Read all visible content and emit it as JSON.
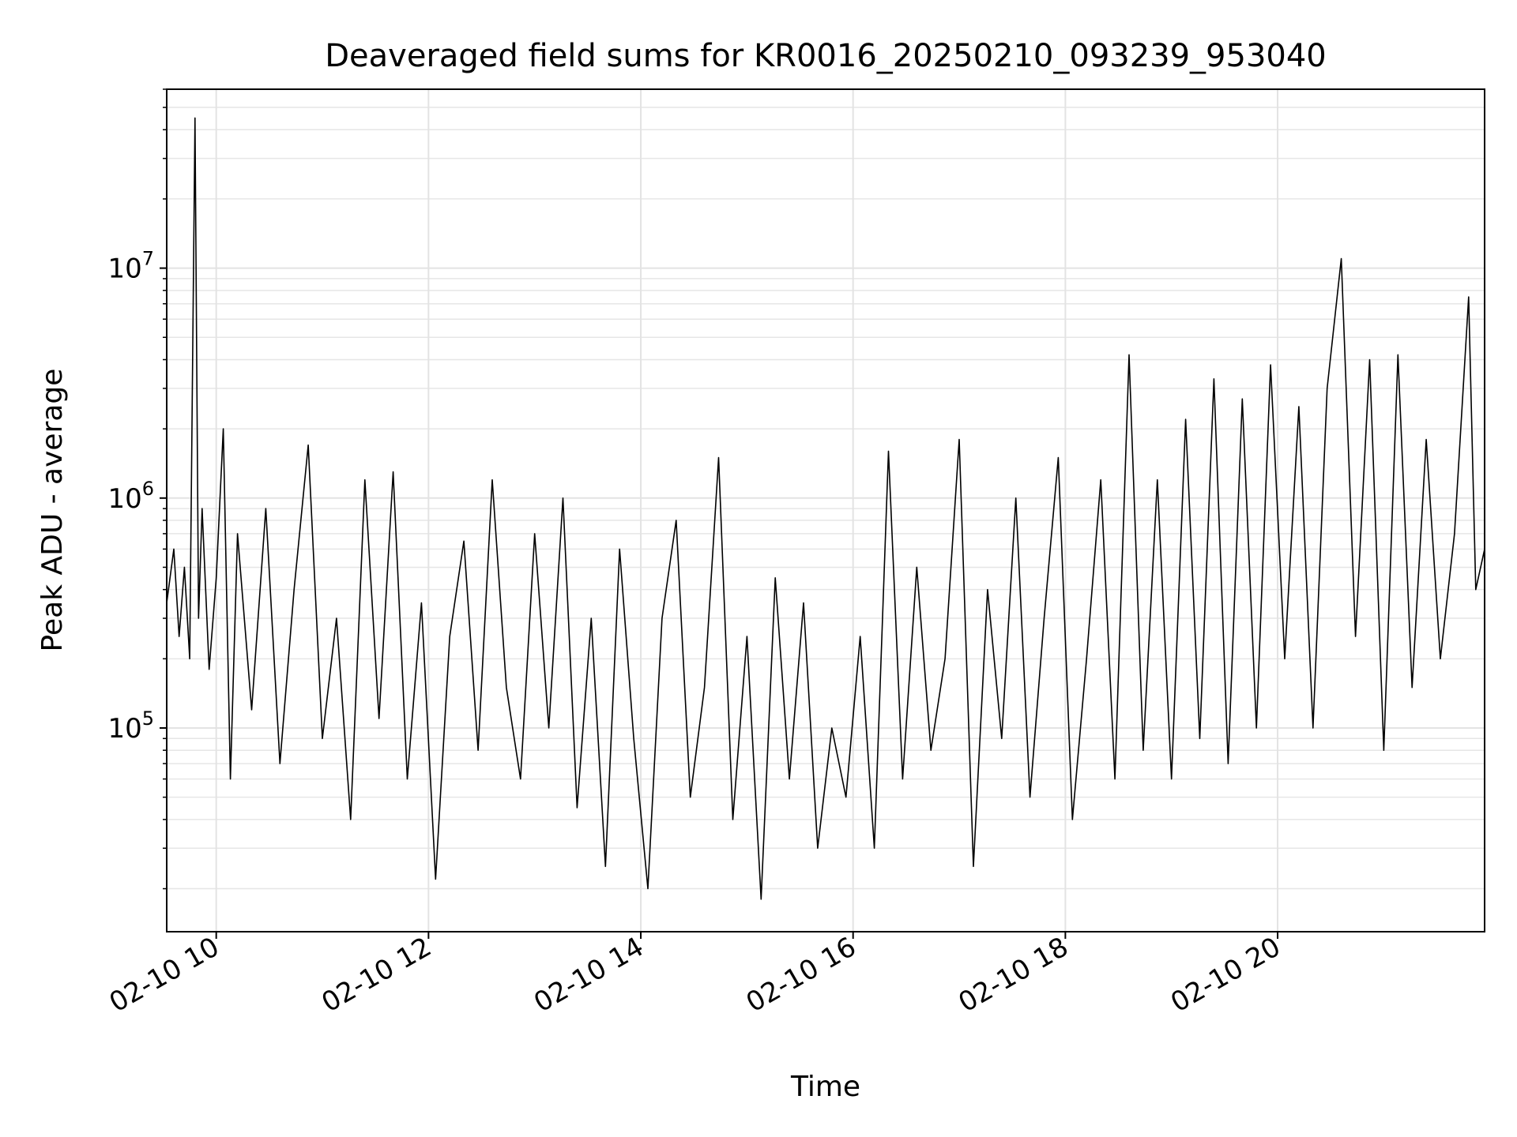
{
  "chart_data": {
    "type": "line",
    "title": "Deaveraged field sums for KR0016_20250210_093239_953040",
    "xlabel": "Time",
    "ylabel": "Peak ADU - average",
    "y_scale": "log",
    "ylim": [
      13000,
      60000000
    ],
    "xlim": [
      "2025-02-10 09:32",
      "2025-02-10 21:57"
    ],
    "grid": true,
    "legend": "none",
    "x_ticks": [
      {
        "value": "2025-02-10 10:00",
        "label": "02-10 10"
      },
      {
        "value": "2025-02-10 12:00",
        "label": "02-10 12"
      },
      {
        "value": "2025-02-10 14:00",
        "label": "02-10 14"
      },
      {
        "value": "2025-02-10 16:00",
        "label": "02-10 16"
      },
      {
        "value": "2025-02-10 18:00",
        "label": "02-10 18"
      },
      {
        "value": "2025-02-10 20:00",
        "label": "02-10 20"
      }
    ],
    "y_ticks": [
      {
        "value": 100000,
        "base": "10",
        "exp": "5"
      },
      {
        "value": 1000000,
        "base": "10",
        "exp": "6"
      },
      {
        "value": 10000000,
        "base": "10",
        "exp": "7"
      }
    ],
    "series": [
      {
        "color": "#000000",
        "points": [
          [
            "2025-02-10 09:32",
            350000
          ],
          [
            "2025-02-10 09:36",
            600000
          ],
          [
            "2025-02-10 09:39",
            250000
          ],
          [
            "2025-02-10 09:42",
            500000
          ],
          [
            "2025-02-10 09:45",
            200000
          ],
          [
            "2025-02-10 09:48",
            45000000
          ],
          [
            "2025-02-10 09:50",
            300000
          ],
          [
            "2025-02-10 09:52",
            900000
          ],
          [
            "2025-02-10 09:56",
            180000
          ],
          [
            "2025-02-10 10:00",
            450000
          ],
          [
            "2025-02-10 10:04",
            2000000
          ],
          [
            "2025-02-10 10:08",
            60000
          ],
          [
            "2025-02-10 10:12",
            700000
          ],
          [
            "2025-02-10 10:20",
            120000
          ],
          [
            "2025-02-10 10:28",
            900000
          ],
          [
            "2025-02-10 10:36",
            70000
          ],
          [
            "2025-02-10 10:44",
            400000
          ],
          [
            "2025-02-10 10:52",
            1700000
          ],
          [
            "2025-02-10 11:00",
            90000
          ],
          [
            "2025-02-10 11:08",
            300000
          ],
          [
            "2025-02-10 11:16",
            40000
          ],
          [
            "2025-02-10 11:24",
            1200000
          ],
          [
            "2025-02-10 11:32",
            110000
          ],
          [
            "2025-02-10 11:40",
            1300000
          ],
          [
            "2025-02-10 11:48",
            60000
          ],
          [
            "2025-02-10 11:56",
            350000
          ],
          [
            "2025-02-10 12:04",
            22000
          ],
          [
            "2025-02-10 12:12",
            250000
          ],
          [
            "2025-02-10 12:20",
            650000
          ],
          [
            "2025-02-10 12:28",
            80000
          ],
          [
            "2025-02-10 12:36",
            1200000
          ],
          [
            "2025-02-10 12:44",
            150000
          ],
          [
            "2025-02-10 12:52",
            60000
          ],
          [
            "2025-02-10 13:00",
            700000
          ],
          [
            "2025-02-10 13:08",
            100000
          ],
          [
            "2025-02-10 13:16",
            1000000
          ],
          [
            "2025-02-10 13:24",
            45000
          ],
          [
            "2025-02-10 13:32",
            300000
          ],
          [
            "2025-02-10 13:40",
            25000
          ],
          [
            "2025-02-10 13:48",
            600000
          ],
          [
            "2025-02-10 13:56",
            90000
          ],
          [
            "2025-02-10 14:04",
            20000
          ],
          [
            "2025-02-10 14:12",
            300000
          ],
          [
            "2025-02-10 14:20",
            800000
          ],
          [
            "2025-02-10 14:28",
            50000
          ],
          [
            "2025-02-10 14:36",
            150000
          ],
          [
            "2025-02-10 14:44",
            1500000
          ],
          [
            "2025-02-10 14:52",
            40000
          ],
          [
            "2025-02-10 15:00",
            250000
          ],
          [
            "2025-02-10 15:08",
            18000
          ],
          [
            "2025-02-10 15:16",
            450000
          ],
          [
            "2025-02-10 15:24",
            60000
          ],
          [
            "2025-02-10 15:32",
            350000
          ],
          [
            "2025-02-10 15:40",
            30000
          ],
          [
            "2025-02-10 15:48",
            100000
          ],
          [
            "2025-02-10 15:56",
            50000
          ],
          [
            "2025-02-10 16:04",
            250000
          ],
          [
            "2025-02-10 16:12",
            30000
          ],
          [
            "2025-02-10 16:20",
            1600000
          ],
          [
            "2025-02-10 16:28",
            60000
          ],
          [
            "2025-02-10 16:36",
            500000
          ],
          [
            "2025-02-10 16:44",
            80000
          ],
          [
            "2025-02-10 16:52",
            200000
          ],
          [
            "2025-02-10 17:00",
            1800000
          ],
          [
            "2025-02-10 17:08",
            25000
          ],
          [
            "2025-02-10 17:16",
            400000
          ],
          [
            "2025-02-10 17:24",
            90000
          ],
          [
            "2025-02-10 17:32",
            1000000
          ],
          [
            "2025-02-10 17:40",
            50000
          ],
          [
            "2025-02-10 17:48",
            300000
          ],
          [
            "2025-02-10 17:56",
            1500000
          ],
          [
            "2025-02-10 18:04",
            40000
          ],
          [
            "2025-02-10 18:12",
            200000
          ],
          [
            "2025-02-10 18:20",
            1200000
          ],
          [
            "2025-02-10 18:28",
            60000
          ],
          [
            "2025-02-10 18:36",
            4200000
          ],
          [
            "2025-02-10 18:44",
            80000
          ],
          [
            "2025-02-10 18:52",
            1200000
          ],
          [
            "2025-02-10 19:00",
            60000
          ],
          [
            "2025-02-10 19:08",
            2200000
          ],
          [
            "2025-02-10 19:16",
            90000
          ],
          [
            "2025-02-10 19:24",
            3300000
          ],
          [
            "2025-02-10 19:32",
            70000
          ],
          [
            "2025-02-10 19:40",
            2700000
          ],
          [
            "2025-02-10 19:48",
            100000
          ],
          [
            "2025-02-10 19:56",
            3800000
          ],
          [
            "2025-02-10 20:04",
            200000
          ],
          [
            "2025-02-10 20:12",
            2500000
          ],
          [
            "2025-02-10 20:20",
            100000
          ],
          [
            "2025-02-10 20:28",
            3000000
          ],
          [
            "2025-02-10 20:36",
            11000000
          ],
          [
            "2025-02-10 20:44",
            250000
          ],
          [
            "2025-02-10 20:52",
            4000000
          ],
          [
            "2025-02-10 21:00",
            80000
          ],
          [
            "2025-02-10 21:08",
            4200000
          ],
          [
            "2025-02-10 21:16",
            150000
          ],
          [
            "2025-02-10 21:24",
            1800000
          ],
          [
            "2025-02-10 21:32",
            200000
          ],
          [
            "2025-02-10 21:40",
            700000
          ],
          [
            "2025-02-10 21:48",
            7500000
          ],
          [
            "2025-02-10 21:52",
            400000
          ],
          [
            "2025-02-10 21:57",
            600000
          ]
        ]
      }
    ]
  }
}
